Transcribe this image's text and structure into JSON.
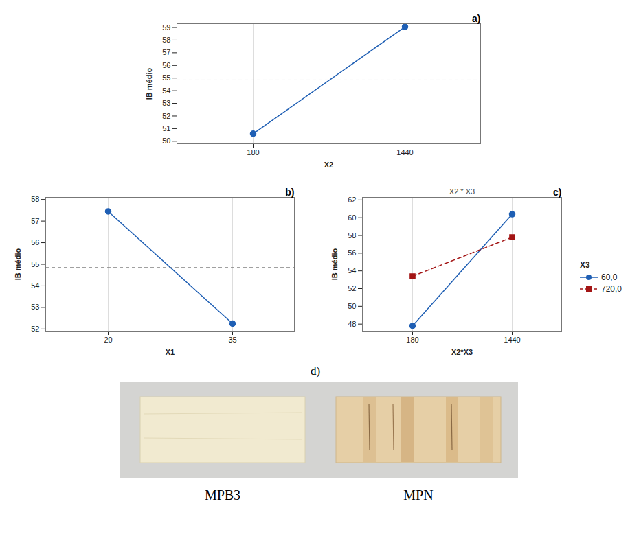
{
  "chart_data": [
    {
      "panel": "a)",
      "type": "line",
      "x_label": "X2",
      "y_label": "IB médio",
      "categories": [
        "180",
        "1440"
      ],
      "values": [
        50.6,
        59.05
      ],
      "color": "#1f5fb4",
      "marker": "circle",
      "line_style": "solid",
      "mean_line": 54.85,
      "ylim": [
        49.8,
        59.3
      ],
      "yticks": [
        50,
        51,
        52,
        53,
        54,
        55,
        56,
        57,
        58,
        59
      ],
      "grid": "x"
    },
    {
      "panel": "b)",
      "type": "line",
      "x_label": "X1",
      "y_label": "IB médio",
      "categories": [
        "20",
        "35"
      ],
      "values": [
        57.45,
        52.25
      ],
      "color": "#1f5fb4",
      "marker": "circle",
      "line_style": "solid",
      "mean_line": 54.85,
      "ylim": [
        51.9,
        58.1
      ],
      "yticks": [
        52,
        53,
        54,
        55,
        56,
        57,
        58
      ],
      "grid": "x"
    },
    {
      "panel": "c)",
      "type": "line",
      "title": "X2 * X3",
      "x_label": "X2*X3",
      "y_label": "IB médio",
      "categories": [
        "180",
        "1440"
      ],
      "legend_title": "X3",
      "legend": "right",
      "series": [
        {
          "name": "60,0",
          "color": "#1f5fb4",
          "marker": "circle",
          "line_style": "solid",
          "values": [
            47.8,
            60.4
          ]
        },
        {
          "name": "720,0",
          "color": "#a31515",
          "marker": "square",
          "line_style": "dashed",
          "values": [
            53.4,
            57.8
          ]
        }
      ],
      "ylim": [
        47.2,
        62.3
      ],
      "yticks": [
        48,
        50,
        52,
        54,
        56,
        58,
        60,
        62
      ],
      "grid": "x"
    }
  ],
  "figure_d": {
    "label": "d)",
    "samples": [
      "MPB3",
      "MPN"
    ]
  }
}
